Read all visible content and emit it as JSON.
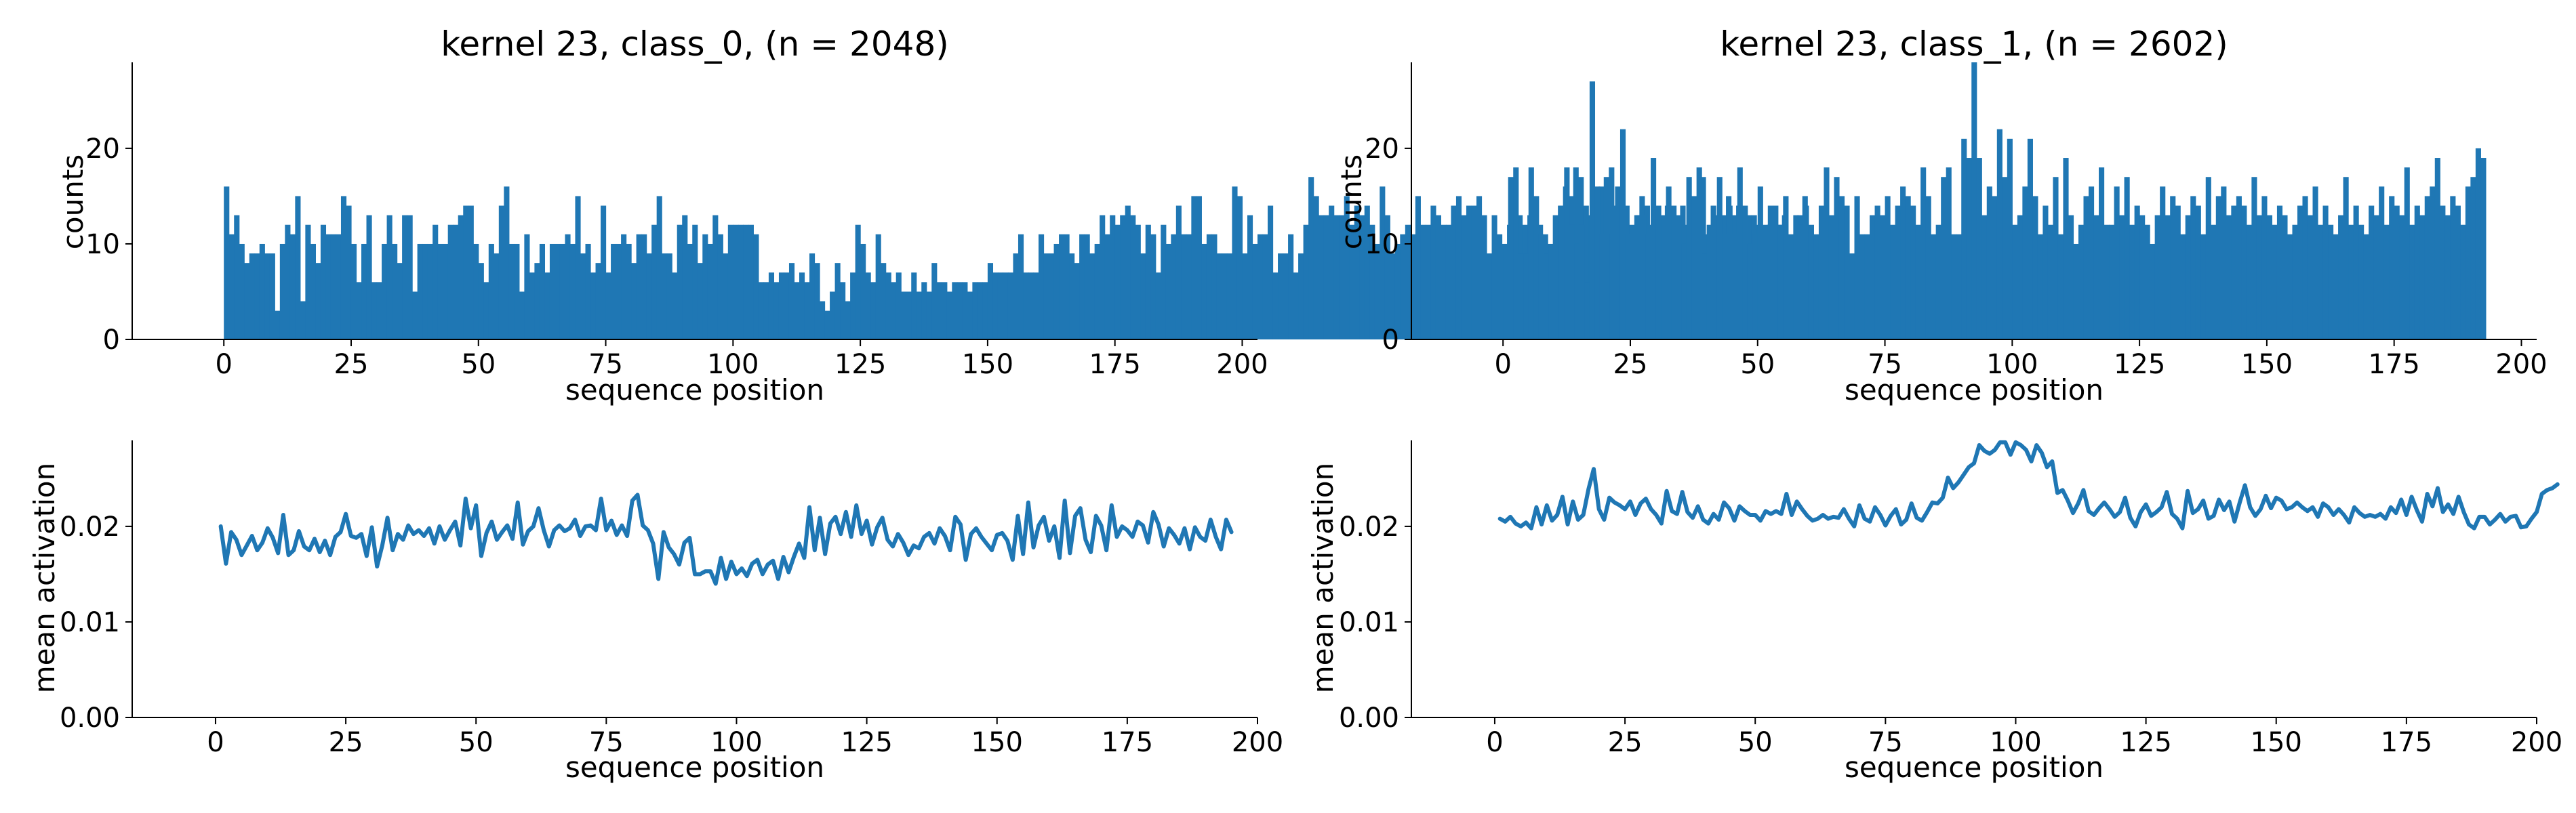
{
  "figure": {
    "background": "#ffffff",
    "color": "#1f77b4"
  },
  "chart_data": [
    {
      "type": "bar",
      "title": "kernel 23, class_0, (n = 2048)",
      "xlabel": "sequence position",
      "ylabel": "counts",
      "xlim": [
        -18,
        203
      ],
      "ylim": [
        0,
        29
      ],
      "xticks": [
        0,
        25,
        50,
        75,
        100,
        125,
        150,
        175,
        200
      ],
      "yticks": [
        0,
        10,
        20
      ],
      "grid": false,
      "x_start": 0,
      "values": [
        16,
        11,
        13,
        10,
        8,
        9,
        9,
        10,
        9,
        9,
        3,
        10,
        12,
        11,
        15,
        4,
        12,
        10,
        8,
        12,
        11,
        11,
        11,
        15,
        14,
        10,
        6,
        10,
        13,
        6,
        6,
        10,
        13,
        10,
        8,
        13,
        13,
        5,
        10,
        10,
        10,
        12,
        10,
        10,
        12,
        12,
        13,
        14,
        14,
        10,
        8,
        6,
        10,
        9,
        14,
        16,
        10,
        10,
        5,
        11,
        7,
        8,
        10,
        7,
        10,
        10,
        10,
        11,
        10,
        15,
        9,
        10,
        7,
        8,
        14,
        7,
        10,
        10,
        11,
        10,
        8,
        11,
        11,
        9,
        12,
        15,
        9,
        9,
        7,
        12,
        13,
        10,
        12,
        8,
        11,
        10,
        13,
        11,
        9,
        12,
        12,
        12,
        12,
        12,
        11,
        6,
        6,
        7,
        6,
        7,
        7,
        8,
        6,
        7,
        6,
        9,
        8,
        4,
        3,
        5,
        8,
        6,
        4,
        7,
        12,
        10,
        7,
        6,
        11,
        8,
        7,
        6,
        7,
        5,
        5,
        7,
        5,
        6,
        5,
        8,
        6,
        6,
        5,
        6,
        6,
        6,
        5,
        6,
        6,
        6,
        8,
        7,
        7,
        7,
        7,
        9,
        11,
        7,
        7,
        7,
        11,
        9,
        9,
        10,
        11,
        11,
        9,
        8,
        11,
        11,
        9,
        10,
        13,
        11,
        13,
        12,
        13,
        14,
        13,
        12,
        9,
        12,
        11,
        7,
        12,
        10,
        11,
        14,
        11,
        11,
        15,
        15,
        10,
        11,
        11,
        9,
        9,
        9,
        16,
        15,
        9,
        13,
        10,
        11,
        11,
        14,
        7,
        9,
        9,
        11,
        7,
        9,
        12,
        17,
        15,
        13,
        13,
        14,
        13,
        13,
        15,
        12,
        14,
        13,
        14,
        12,
        10,
        16,
        13,
        9,
        10,
        11,
        12,
        11,
        15,
        12,
        12,
        14,
        13,
        12,
        12,
        14,
        15,
        13,
        14,
        14,
        15,
        13,
        9,
        13,
        11,
        10,
        12,
        15,
        13,
        12,
        13,
        12,
        12,
        11,
        10,
        13,
        14,
        16,
        15,
        18,
        17,
        14,
        13,
        14,
        16,
        17,
        18,
        14,
        13,
        14,
        12,
        13,
        15,
        14,
        12,
        12,
        11,
        14,
        10,
        11,
        14,
        12,
        11,
        13,
        17,
        11,
        14,
        12,
        13,
        15,
        13,
        14,
        12,
        13,
        13,
        12,
        10,
        12,
        11,
        12,
        13,
        10,
        10,
        13,
        15
      ]
    },
    {
      "type": "bar",
      "title": "kernel 23, class_1, (n = 2602)",
      "xlabel": "sequence position",
      "ylabel": "counts",
      "xlim": [
        -18,
        203
      ],
      "ylim": [
        0,
        29
      ],
      "xticks": [
        0,
        25,
        50,
        75,
        100,
        125,
        150,
        175,
        200
      ],
      "yticks": [
        0,
        10,
        20
      ],
      "grid": false,
      "x_start": 0,
      "values": [
        10,
        17,
        18,
        9,
        9,
        18,
        15,
        11,
        9,
        10,
        12,
        14,
        18,
        12,
        10,
        12,
        6,
        27,
        16,
        11,
        11,
        11,
        16,
        22,
        11,
        11,
        13,
        13,
        11,
        19,
        14,
        13,
        16,
        14,
        13,
        10,
        17,
        15,
        18,
        9,
        12,
        13,
        17,
        11,
        14,
        11,
        18,
        14,
        10,
        11,
        16,
        12,
        14,
        14,
        12,
        15,
        11,
        13,
        12,
        14,
        12,
        11,
        14,
        18,
        13,
        17,
        15,
        14,
        9,
        15,
        11,
        11,
        13,
        14,
        13,
        15,
        12,
        14,
        16,
        15,
        14,
        12,
        18,
        15,
        11,
        12,
        17,
        18,
        11,
        11,
        21,
        19,
        29,
        19,
        13,
        16,
        15,
        22,
        17,
        21,
        12,
        13,
        16,
        21,
        15,
        11,
        14,
        12,
        17,
        11,
        19,
        13,
        10,
        12,
        15,
        16,
        13,
        18,
        12,
        12,
        16,
        13,
        17,
        12,
        14,
        13,
        12,
        10,
        13,
        16,
        13,
        15,
        14,
        11,
        13,
        15,
        14,
        11,
        17,
        12,
        15,
        16,
        13,
        14,
        15,
        14,
        12,
        17,
        13,
        15,
        13,
        12,
        14,
        13,
        11,
        12,
        14,
        15,
        13,
        16,
        12,
        14,
        12,
        11,
        13,
        17,
        12,
        14,
        12,
        11,
        14,
        13,
        16,
        12,
        15,
        14,
        13,
        18,
        12,
        14,
        13,
        15,
        16,
        19,
        14,
        13,
        15,
        14,
        12,
        16,
        17,
        20,
        19
      ]
    },
    {
      "type": "line",
      "title": "",
      "xlabel": "sequence position",
      "ylabel": "mean activation",
      "xlim": [
        -16,
        200
      ],
      "ylim": [
        0,
        0.029
      ],
      "xticks": [
        0,
        25,
        50,
        75,
        100,
        125,
        150,
        175,
        200
      ],
      "yticks": [
        0,
        0.01,
        0.02
      ],
      "ytick_labels": [
        "0.00",
        "0.01",
        "0.02"
      ],
      "grid": false,
      "x_start": 1,
      "values": [
        0.02,
        0.0161,
        0.0194,
        0.0186,
        0.017,
        0.018,
        0.019,
        0.0175,
        0.0183,
        0.0198,
        0.0188,
        0.0172,
        0.0212,
        0.017,
        0.0175,
        0.0195,
        0.0179,
        0.0175,
        0.0187,
        0.0173,
        0.0185,
        0.017,
        0.0189,
        0.0194,
        0.0213,
        0.019,
        0.0188,
        0.0192,
        0.0169,
        0.0199,
        0.0158,
        0.018,
        0.0209,
        0.0175,
        0.0192,
        0.0186,
        0.0201,
        0.0192,
        0.0196,
        0.019,
        0.0198,
        0.0182,
        0.02,
        0.0186,
        0.0196,
        0.0205,
        0.018,
        0.0229,
        0.0198,
        0.0222,
        0.0169,
        0.0193,
        0.0205,
        0.0186,
        0.0194,
        0.0201,
        0.0187,
        0.0225,
        0.0181,
        0.0195,
        0.02,
        0.0219,
        0.0196,
        0.0179,
        0.0196,
        0.0201,
        0.0195,
        0.0198,
        0.0207,
        0.019,
        0.02,
        0.0201,
        0.0196,
        0.0229,
        0.0196,
        0.0206,
        0.0191,
        0.0201,
        0.019,
        0.0227,
        0.0233,
        0.0201,
        0.0196,
        0.0182,
        0.0145,
        0.0194,
        0.0178,
        0.0171,
        0.016,
        0.0183,
        0.0188,
        0.015,
        0.015,
        0.0153,
        0.0153,
        0.014,
        0.0167,
        0.0145,
        0.0163,
        0.015,
        0.0156,
        0.0148,
        0.0161,
        0.0165,
        0.015,
        0.016,
        0.0164,
        0.0145,
        0.0168,
        0.0152,
        0.0168,
        0.0182,
        0.0167,
        0.022,
        0.0175,
        0.0209,
        0.0171,
        0.0203,
        0.021,
        0.0192,
        0.0215,
        0.0189,
        0.0222,
        0.0192,
        0.0206,
        0.0181,
        0.0199,
        0.0209,
        0.0186,
        0.0179,
        0.0192,
        0.0183,
        0.017,
        0.018,
        0.0177,
        0.0189,
        0.0193,
        0.0182,
        0.0198,
        0.019,
        0.0175,
        0.021,
        0.0202,
        0.0165,
        0.0192,
        0.0198,
        0.0189,
        0.0182,
        0.0175,
        0.0191,
        0.0193,
        0.0185,
        0.0165,
        0.0211,
        0.0171,
        0.0225,
        0.0178,
        0.0201,
        0.021,
        0.0185,
        0.02,
        0.0167,
        0.0227,
        0.0172,
        0.0211,
        0.0219,
        0.0186,
        0.0173,
        0.0211,
        0.0201,
        0.0175,
        0.0222,
        0.0189,
        0.02,
        0.0196,
        0.0189,
        0.0205,
        0.0201,
        0.0183,
        0.0215,
        0.0202,
        0.0179,
        0.0198,
        0.0191,
        0.0182,
        0.0198,
        0.0176,
        0.0199,
        0.0189,
        0.0185,
        0.0207,
        0.0189,
        0.0176,
        0.0207,
        0.0194
      ]
    },
    {
      "type": "line",
      "title": "",
      "xlabel": "sequence position",
      "ylabel": "mean activation",
      "xlim": [
        -16,
        200
      ],
      "ylim": [
        0,
        0.029
      ],
      "xticks": [
        0,
        25,
        50,
        75,
        100,
        125,
        150,
        175,
        200
      ],
      "yticks": [
        0,
        0.01,
        0.02
      ],
      "ytick_labels": [
        "0.00",
        "0.01",
        "0.02"
      ],
      "grid": false,
      "x_start": 1,
      "values": [
        0.0208,
        0.0205,
        0.021,
        0.0203,
        0.02,
        0.0204,
        0.0198,
        0.022,
        0.0202,
        0.0222,
        0.0206,
        0.0212,
        0.0231,
        0.0202,
        0.0226,
        0.0207,
        0.0212,
        0.0239,
        0.026,
        0.0218,
        0.0207,
        0.023,
        0.0225,
        0.0222,
        0.0218,
        0.0226,
        0.0212,
        0.0224,
        0.0229,
        0.0218,
        0.0212,
        0.0203,
        0.0237,
        0.0216,
        0.0213,
        0.0236,
        0.0215,
        0.0209,
        0.0221,
        0.0207,
        0.0203,
        0.0213,
        0.0207,
        0.0225,
        0.0219,
        0.0206,
        0.0221,
        0.0216,
        0.0212,
        0.0212,
        0.0206,
        0.0216,
        0.0213,
        0.0216,
        0.0213,
        0.0234,
        0.0212,
        0.0226,
        0.0218,
        0.0211,
        0.0206,
        0.0208,
        0.0212,
        0.0208,
        0.021,
        0.0209,
        0.0218,
        0.0208,
        0.02,
        0.0222,
        0.0208,
        0.0205,
        0.022,
        0.0212,
        0.0201,
        0.0211,
        0.0218,
        0.0202,
        0.0207,
        0.0224,
        0.0209,
        0.0206,
        0.0215,
        0.0225,
        0.0224,
        0.023,
        0.0251,
        0.024,
        0.0246,
        0.0254,
        0.0262,
        0.0266,
        0.0285,
        0.0279,
        0.0276,
        0.028,
        0.0288,
        0.0288,
        0.0275,
        0.0288,
        0.0285,
        0.028,
        0.0268,
        0.0285,
        0.0277,
        0.0262,
        0.0268,
        0.0235,
        0.0238,
        0.0227,
        0.0214,
        0.0224,
        0.0238,
        0.0216,
        0.0212,
        0.0219,
        0.0225,
        0.0218,
        0.021,
        0.0215,
        0.023,
        0.0209,
        0.02,
        0.0215,
        0.0223,
        0.0211,
        0.0215,
        0.022,
        0.0236,
        0.0213,
        0.0208,
        0.0198,
        0.0237,
        0.0214,
        0.0218,
        0.0227,
        0.0208,
        0.0211,
        0.0228,
        0.0217,
        0.0226,
        0.0205,
        0.0225,
        0.0243,
        0.022,
        0.0211,
        0.0218,
        0.0232,
        0.0219,
        0.023,
        0.0227,
        0.0218,
        0.022,
        0.0225,
        0.022,
        0.0216,
        0.022,
        0.021,
        0.0224,
        0.022,
        0.0212,
        0.0218,
        0.0212,
        0.0204,
        0.022,
        0.0214,
        0.021,
        0.0212,
        0.021,
        0.0213,
        0.0208,
        0.022,
        0.0214,
        0.0228,
        0.0212,
        0.0231,
        0.0217,
        0.0205,
        0.0234,
        0.0221,
        0.024,
        0.0215,
        0.0223,
        0.0213,
        0.0231,
        0.0215,
        0.0202,
        0.0198,
        0.021,
        0.021,
        0.0202,
        0.0207,
        0.0213,
        0.0205,
        0.021,
        0.0211,
        0.0199,
        0.02,
        0.0208,
        0.0215,
        0.0234,
        0.0238,
        0.024,
        0.0244
      ]
    }
  ]
}
